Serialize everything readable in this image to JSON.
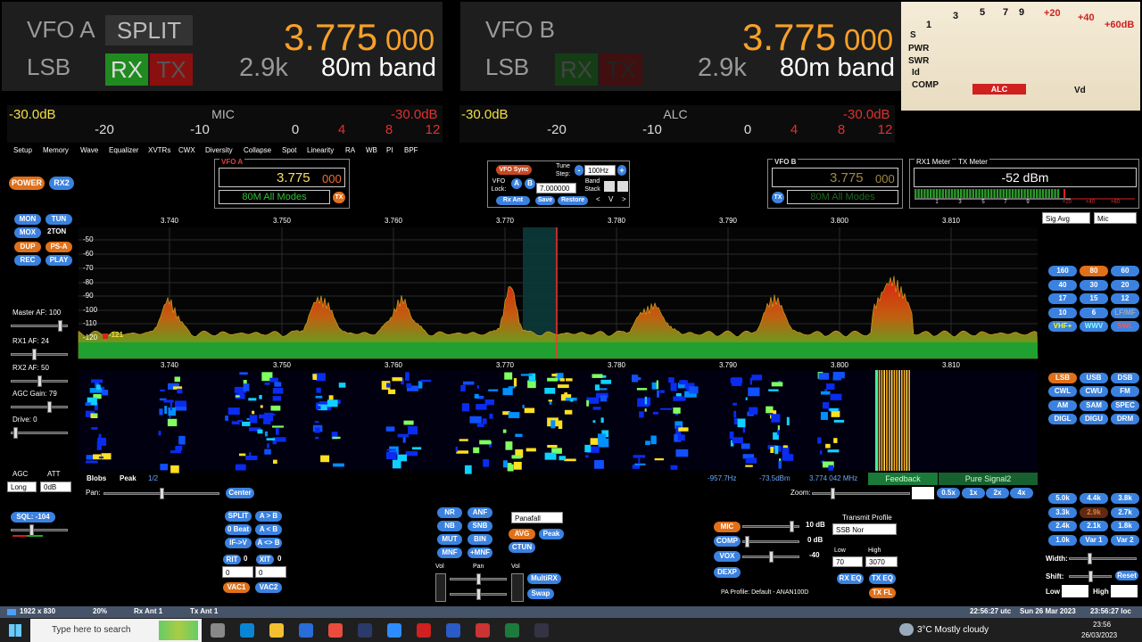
{
  "vfo_a": {
    "label": "VFO A",
    "split": "SPLIT",
    "mode": "LSB",
    "rx": "RX",
    "tx": "TX",
    "freq": "3.775",
    "freq_sub": "000",
    "filter": "2.9k",
    "band": "80m band"
  },
  "vfo_b": {
    "label": "VFO B",
    "mode": "LSB",
    "rx": "RX",
    "tx": "TX",
    "freq": "3.775",
    "freq_sub": "000",
    "filter": "2.9k",
    "band": "80m band"
  },
  "analog_meter": {
    "rows": [
      "S",
      "PWR",
      "SWR",
      "Id",
      "COMP"
    ],
    "alc": "ALC",
    "vd": "Vd",
    "scale": [
      "1",
      "3",
      "5",
      "7",
      "9",
      "+20",
      "+40",
      "+60dB"
    ]
  },
  "level_meters": [
    {
      "left": "-30.0dB",
      "title": "MIC",
      "right": "-30.0dB",
      "scale": [
        "-20",
        "-10",
        "0",
        "4",
        "8",
        "12"
      ]
    },
    {
      "left": "-30.0dB",
      "title": "ALC",
      "right": "-30.0dB",
      "scale": [
        "-20",
        "-10",
        "0",
        "4",
        "8",
        "12"
      ]
    }
  ],
  "menu": [
    "Setup",
    "Memory",
    "Wave",
    "Equalizer",
    "XVTRs",
    "CWX",
    "Diversity",
    "Collapse",
    "Spot",
    "Linearity",
    "RA",
    "WB",
    "PI",
    "BPF"
  ],
  "left_panel": {
    "power": "POWER",
    "rx2": "RX2",
    "buttons": [
      "MON",
      "TUN",
      "MOX",
      "2TON",
      "DUP",
      "PS-A",
      "REC",
      "PLAY"
    ],
    "sliders": [
      "Master AF:  100",
      "RX1 AF:  24",
      "RX2 AF:  50",
      "AGC Gain:  79",
      "Drive:  0"
    ],
    "agc": "AGC",
    "att": "ATT",
    "agc_value": "Long",
    "att_value": "0dB",
    "sql": "SQL: -104"
  },
  "vfo_a_panel": {
    "title": "VFO A",
    "freq": "3.775",
    "freq_sub": "000",
    "band": "80M All Modes",
    "tx": "TX"
  },
  "vfo_control": {
    "sync": "VFO Sync",
    "tune_step": "Tune Step:",
    "minus": "-",
    "step": "100Hz",
    "plus": "+",
    "lock": "VFO Lock:",
    "a": "A",
    "b": "B",
    "freq": "7.000000",
    "band_stack": "Band Stack",
    "rx_ant": "Rx Ant",
    "save": "Save",
    "restore": "Restore",
    "nav": [
      "<",
      "V",
      ">"
    ]
  },
  "vfo_b_panel": {
    "title": "VFO B",
    "freq": "3.775",
    "freq_sub": "000",
    "band": "80M All Modes",
    "tx": "TX"
  },
  "signal_meter": {
    "rx_label": "RX1 Meter",
    "tx_label": "TX Meter",
    "reading": "-52 dBm",
    "scale": [
      "1",
      "3",
      "5",
      "7",
      "9",
      "+20",
      "+40",
      "+60"
    ],
    "mode": "Sig Avg",
    "source": "Mic"
  },
  "panadapter": {
    "freqs": [
      "3.740",
      "3.750",
      "3.760",
      "3.770",
      "3.780",
      "3.790",
      "3.800",
      "3.810"
    ],
    "levels": [
      "-50",
      "-60",
      "-70",
      "-80",
      "-90",
      "-100",
      "-110",
      "-120"
    ],
    "floor": "-121"
  },
  "waterfall_bar": {
    "blobs": "Blobs",
    "peak": "Peak",
    "page": "1/2",
    "readouts": [
      "-957.7Hz",
      "-73.5dBm",
      "3.774 042 MHz"
    ],
    "feedback": "Feedback",
    "pure_signal": "Pure Signal2",
    "pan": "Pan:",
    "center": "Center",
    "zoom": "Zoom:",
    "zoom_levels": [
      "0.5x",
      "1x",
      "2x",
      "4x"
    ]
  },
  "bands": [
    "160",
    "80",
    "60",
    "40",
    "30",
    "20",
    "17",
    "15",
    "12",
    "10",
    "6",
    "LF/MF",
    "VHF+",
    "WWV",
    "SWL"
  ],
  "modes": [
    "LSB",
    "USB",
    "DSB",
    "CWL",
    "CWU",
    "FM",
    "AM",
    "SAM",
    "SPEC",
    "DIGL",
    "DIGU",
    "DRM"
  ],
  "filters": [
    "5.0k",
    "4.4k",
    "3.8k",
    "3.3k",
    "2.9k",
    "2.7k",
    "2.4k",
    "2.1k",
    "1.8k",
    "1.0k",
    "Var 1",
    "Var 2"
  ],
  "filter_controls": {
    "width": "Width:",
    "shift": "Shift:",
    "reset": "Reset",
    "low": "Low",
    "high": "High"
  },
  "vfo_buttons": {
    "buttons": [
      "SPLIT",
      "A > B",
      "0 Beat",
      "A < B",
      "IF->V",
      "A <> B"
    ],
    "rit": "RIT",
    "rit_value": "0",
    "xit": "XIT",
    "xit_value": "0",
    "rit_offset": "0",
    "xit_offset": "0",
    "vac": [
      "VAC1",
      "VAC2"
    ]
  },
  "dsp": {
    "buttons": [
      "NR",
      "ANF",
      "NB",
      "SNB",
      "MUT",
      "BIN",
      "MNF",
      "+MNF"
    ],
    "display": "Panafall",
    "avg": "AVG",
    "peak": "Peak",
    "ctun": "CTUN",
    "sliders": [
      "Vol",
      "Pan",
      "Vol"
    ],
    "multirx": "MultiRX",
    "swap": "Swap"
  },
  "transmit": {
    "buttons": [
      "MIC",
      "COMP",
      "VOX",
      "DEXP"
    ],
    "levels": [
      "10 dB",
      "0 dB",
      "-40"
    ],
    "profile_label": "Transmit Profile",
    "profile": "SSB Nor",
    "low": "Low",
    "low_value": "70",
    "high": "High",
    "high_value": "3070",
    "rx_eq": "RX EQ",
    "tx_eq": "TX EQ",
    "tx_fl": "TX FL",
    "pa_profile": "PA Profile: Default - ANAN100D"
  },
  "status_bar": [
    "1922 x 830",
    "20%",
    "Rx Ant 1",
    "Tx Ant 1",
    "22:56:27 utc",
    "Sun 26 Mar 2023",
    "23:56:27 loc"
  ],
  "taskbar": {
    "search": "Type here to search",
    "weather": "3°C  Mostly cloudy",
    "time": "23:56",
    "date": "26/03/2023"
  }
}
